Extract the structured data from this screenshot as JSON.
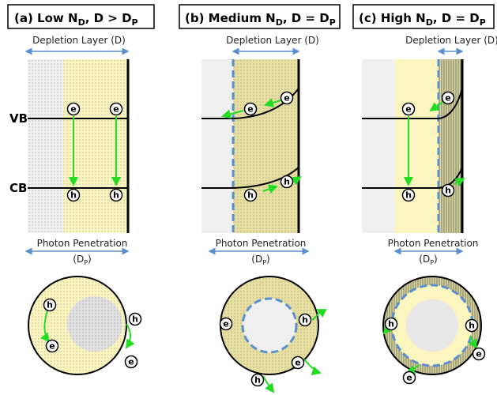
{
  "panels": [
    {
      "title": {
        "main": "(a) Low N",
        "sub1": "D",
        "mid": ", D > D",
        "sub2": "P"
      }
    },
    {
      "title": {
        "main": "(b) Medium N",
        "sub1": "D",
        "mid": ", D = D",
        "sub2": "P"
      }
    },
    {
      "title": {
        "main": "(c) High N",
        "sub1": "D",
        "mid": ", D = D",
        "sub2": "P"
      }
    }
  ],
  "depletion_label": "Depletion Layer (D)",
  "photon_label": "Photon Penetration",
  "photon_symbol": {
    "open": "(D",
    "sub": "P",
    "close": ")"
  },
  "vb": "VB",
  "cb": "CB",
  "electron": "e",
  "hole": "h"
}
